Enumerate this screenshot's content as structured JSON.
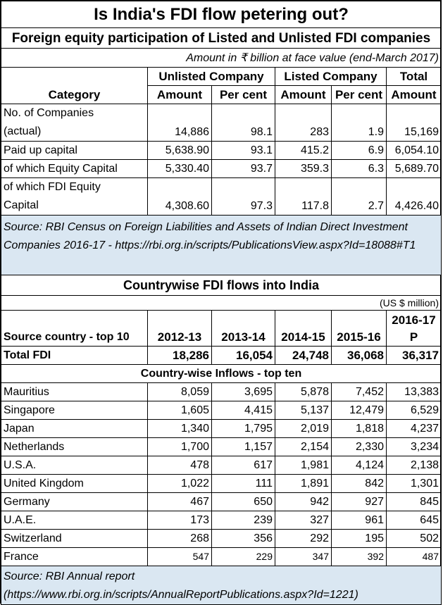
{
  "title": "Is India's FDI flow petering out?",
  "table1": {
    "title": "Foreign equity participation of Listed and Unlisted FDI companies",
    "note": "Amount in ₹ billion at face value (end-March 2017)",
    "group_headers": [
      "Unlisted Company",
      "Listed Company",
      "Total"
    ],
    "col_headers": [
      "Category",
      "Amount",
      "Per cent",
      "Amount",
      "Per cent",
      "Amount"
    ],
    "rows": [
      {
        "category_l1": "No. of Companies",
        "category_l2": "(actual)",
        "values": [
          "14,886",
          "98.1",
          "283",
          "1.9",
          "15,169"
        ]
      },
      {
        "category": "Paid up capital",
        "values": [
          "5,638.90",
          "93.1",
          "415.2",
          "6.9",
          "6,054.10"
        ]
      },
      {
        "category": "of which Equity Capital",
        "values": [
          "5,330.40",
          "93.7",
          "359.3",
          "6.3",
          "5,689.70"
        ]
      },
      {
        "category_l1": "of which FDI Equity",
        "category_l2": "Capital",
        "values": [
          "4,308.60",
          "97.3",
          "117.8",
          "2.7",
          "4,426.40"
        ]
      }
    ],
    "source": "Source: RBI Census on Foreign Liabilities and Assets of  Indian Direct Investment Companies 2016-17 - https://rbi.org.in/scripts/PublicationsView.aspx?Id=18088#T1"
  },
  "table2": {
    "title": "Countrywise FDI flows into India",
    "unit": "(US $ million)",
    "header_label": "Source country - top 10",
    "years": [
      "2012-13",
      "2013-14",
      "2014-15",
      "2015-16",
      "2016-17"
    ],
    "last_year_suffix": "P",
    "total_label": "Total FDI",
    "total_values": [
      "18,286",
      "16,054",
      "24,748",
      "36,068",
      "36,317"
    ],
    "section_label": "Country-wise Inflows - top ten",
    "rows": [
      {
        "country": "Mauritius",
        "values": [
          "8,059",
          "3,695",
          "5,878",
          "7,452",
          "13,383"
        ]
      },
      {
        "country": "Singapore",
        "values": [
          "1,605",
          "4,415",
          "5,137",
          "12,479",
          "6,529"
        ]
      },
      {
        "country": "Japan",
        "values": [
          "1,340",
          "1,795",
          "2,019",
          "1,818",
          "4,237"
        ]
      },
      {
        "country": "Netherlands",
        "values": [
          "1,700",
          "1,157",
          "2,154",
          "2,330",
          "3,234"
        ]
      },
      {
        "country": "U.S.A.",
        "values": [
          "478",
          "617",
          "1,981",
          "4,124",
          "2,138"
        ]
      },
      {
        "country": "United Kingdom",
        "values": [
          "1,022",
          "111",
          "1,891",
          "842",
          "1,301"
        ]
      },
      {
        "country": "Germany",
        "values": [
          "467",
          "650",
          "942",
          "927",
          "845"
        ]
      },
      {
        "country": "U.A.E.",
        "values": [
          "173",
          "239",
          "327",
          "961",
          "645"
        ]
      },
      {
        "country": "Switzerland",
        "values": [
          "268",
          "356",
          "292",
          "195",
          "502"
        ]
      },
      {
        "country": "France",
        "values": [
          "547",
          "229",
          "347",
          "392",
          "487"
        ]
      }
    ],
    "source_l1": "Source: RBI Annual report",
    "source_l2": "(https://www.rbi.org.in/scripts/AnnualReportPublications.aspx?Id=1221)"
  }
}
